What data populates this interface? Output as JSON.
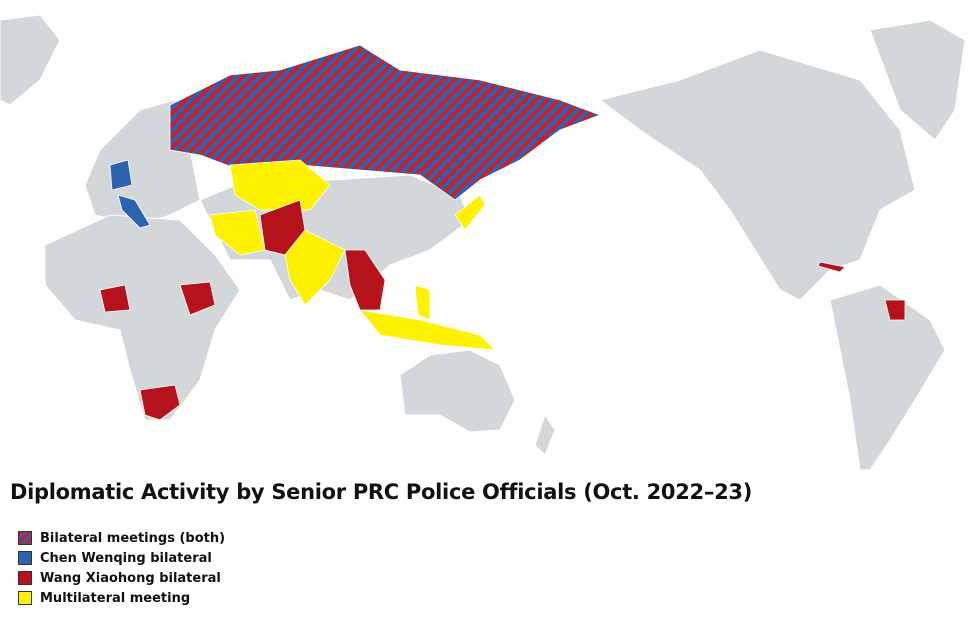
{
  "title": "Diplomatic Activity by Senior PRC Police Officials (Oct. 2022–23)",
  "colors": {
    "land": "#d3d7da",
    "border": "#ffffff",
    "both": "stripes-red-blue",
    "chen": "#2b63b1",
    "wang": "#b5121b",
    "multilateral": "#fff200"
  },
  "legend": [
    {
      "label": "Bilateral meetings (both)",
      "swatch": "both"
    },
    {
      "label": "Chen Wenqing bilateral",
      "swatch": "chen"
    },
    {
      "label": "Wang Xiaohong bilateral",
      "swatch": "wang"
    },
    {
      "label": "Multilateral meeting",
      "swatch": "multilateral"
    }
  ]
}
